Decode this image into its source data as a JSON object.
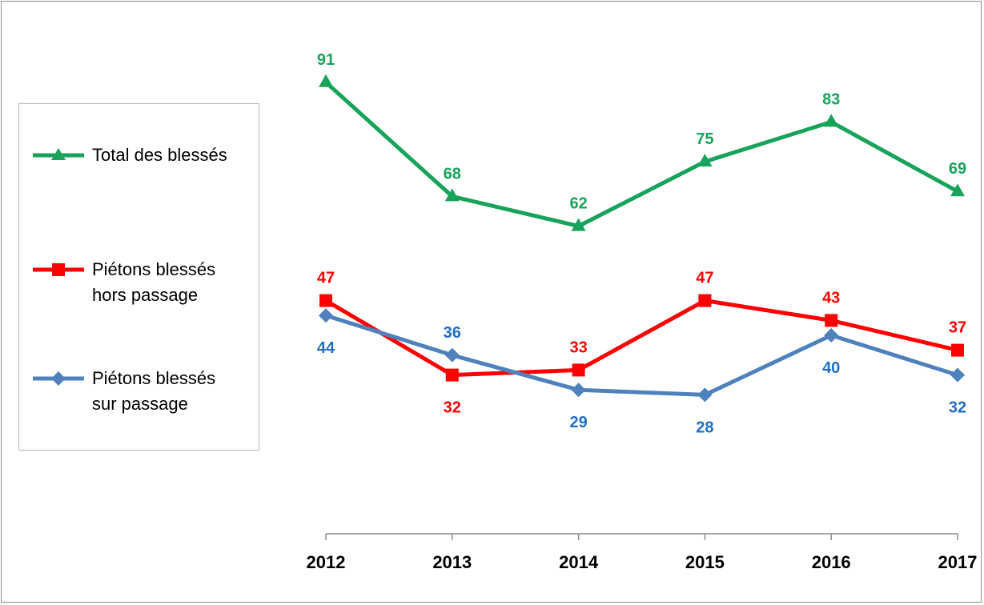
{
  "chart_data": {
    "type": "line",
    "categories": [
      "2012",
      "2013",
      "2014",
      "2015",
      "2016",
      "2017"
    ],
    "series": [
      {
        "name": "Total des blessés",
        "values": [
          91,
          68,
          62,
          75,
          83,
          69
        ],
        "color": "#17a35a",
        "marker": "triangle"
      },
      {
        "name": "Piétons blessés\nhors passage",
        "values": [
          47,
          32,
          33,
          47,
          43,
          37
        ],
        "color": "#ff0000",
        "marker": "square"
      },
      {
        "name": "Piétons blessés\nsur passage",
        "values": [
          44,
          36,
          29,
          28,
          40,
          32
        ],
        "color": "#4f81bd",
        "label_color": "#1f6fc5",
        "marker": "diamond"
      }
    ],
    "label_positions": [
      [
        "above",
        "above",
        "above",
        "above",
        "above",
        "above"
      ],
      [
        "above",
        "below",
        "above",
        "above",
        "above",
        "above"
      ],
      [
        "below",
        "above",
        "below",
        "below",
        "below",
        "below"
      ]
    ],
    "ylim": [
      0,
      100
    ],
    "legend_position": "left",
    "grid": false
  }
}
